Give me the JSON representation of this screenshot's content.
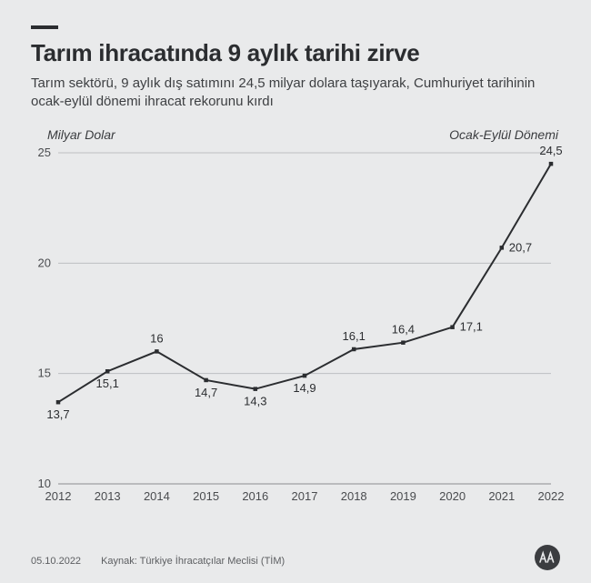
{
  "header": {
    "title": "Tarım ihracatında 9 aylık tarihi zirve",
    "subtitle": "Tarım sektörü, 9 aylık dış satımını 24,5 milyar dolara taşıyarak, Cumhuriyet tarihinin ocak-eylül dönemi ihracat rekorunu kırdı"
  },
  "chart": {
    "type": "line",
    "y_axis_label": "Milyar Dolar",
    "period_label": "Ocak-Eylül Dönemi",
    "ylim": [
      10,
      25
    ],
    "yticks": [
      10,
      15,
      20,
      25
    ],
    "categories": [
      "2012",
      "2013",
      "2014",
      "2015",
      "2016",
      "2017",
      "2018",
      "2019",
      "2020",
      "2021",
      "2022"
    ],
    "values": [
      13.7,
      15.1,
      16.0,
      14.7,
      14.3,
      14.9,
      16.1,
      16.4,
      17.1,
      20.7,
      24.5
    ],
    "value_labels": [
      "13,7",
      "15,1",
      "16",
      "14,7",
      "14,3",
      "14,9",
      "16,1",
      "16,4",
      "17,1",
      "20,7",
      "24,5"
    ],
    "line_color": "#2b2d30",
    "marker_color": "#2b2d30",
    "marker_size": 4.5,
    "line_width": 2,
    "grid_color": "#bdbfc2",
    "baseline_color": "#8a8c8f",
    "background_color": "#e9eaeb",
    "label_fontsize": 13,
    "axis_fontsize": 13,
    "label_positions": [
      "below",
      "below",
      "above",
      "below",
      "below",
      "below",
      "above",
      "above",
      "right",
      "right",
      "above"
    ]
  },
  "footer": {
    "date": "05.10.2022",
    "source": "Kaynak: Türkiye İhracatçılar Meclisi (TİM)",
    "logo_name": "aa-logo"
  }
}
